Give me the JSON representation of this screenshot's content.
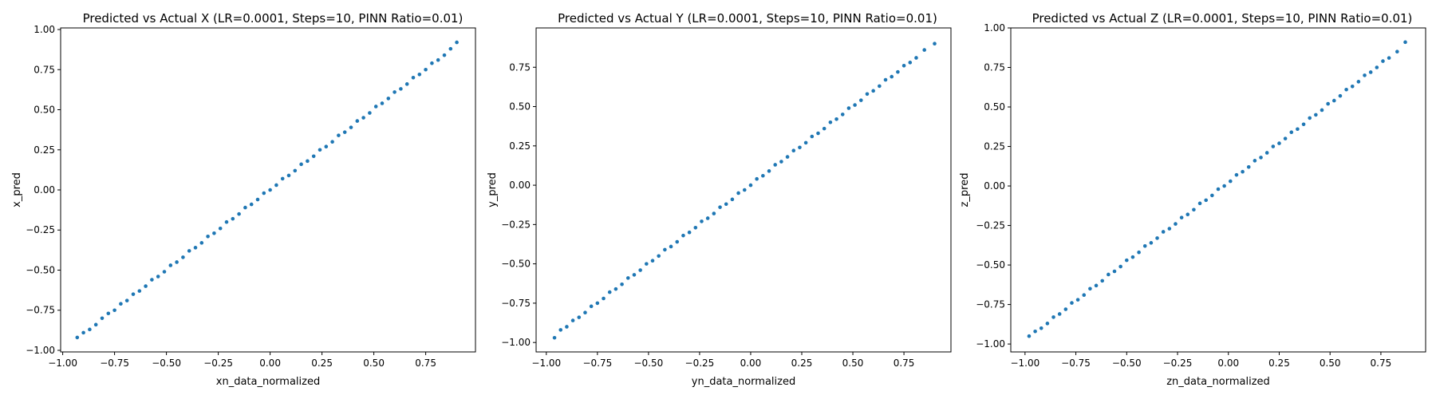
{
  "chart_data": [
    {
      "type": "scatter",
      "title": "Predicted vs Actual X (LR=0.0001, Steps=10, PINN Ratio=0.01)",
      "xlabel": "xn_data_normalized",
      "ylabel": "x_pred",
      "xlim": [
        -1.01,
        0.99
      ],
      "ylim": [
        -1.01,
        1.01
      ],
      "xticks": [
        -1.0,
        -0.75,
        -0.5,
        -0.25,
        0.0,
        0.25,
        0.5,
        0.75
      ],
      "xtick_labels": [
        "−1.00",
        "−0.75",
        "−0.50",
        "−0.25",
        "0.00",
        "0.25",
        "0.50",
        "0.75"
      ],
      "yticks": [
        -1.0,
        -0.75,
        -0.5,
        -0.25,
        0.0,
        0.25,
        0.5,
        0.75,
        1.0
      ],
      "ytick_labels": [
        "−1.00",
        "−0.75",
        "−0.50",
        "−0.25",
        "0.00",
        "0.25",
        "0.50",
        "0.75",
        "1.00"
      ],
      "grid": false,
      "color": "#1f77b4",
      "x": [
        -0.93,
        -0.9,
        -0.87,
        -0.84,
        -0.81,
        -0.78,
        -0.75,
        -0.72,
        -0.69,
        -0.66,
        -0.63,
        -0.6,
        -0.57,
        -0.54,
        -0.51,
        -0.48,
        -0.45,
        -0.42,
        -0.39,
        -0.36,
        -0.33,
        -0.3,
        -0.27,
        -0.24,
        -0.21,
        -0.18,
        -0.15,
        -0.12,
        -0.09,
        -0.06,
        -0.03,
        0.0,
        0.03,
        0.06,
        0.09,
        0.12,
        0.15,
        0.18,
        0.21,
        0.24,
        0.27,
        0.3,
        0.33,
        0.36,
        0.39,
        0.42,
        0.45,
        0.48,
        0.51,
        0.54,
        0.57,
        0.6,
        0.63,
        0.66,
        0.69,
        0.72,
        0.75,
        0.78,
        0.81,
        0.84,
        0.87,
        0.9
      ],
      "y": [
        -0.92,
        -0.89,
        -0.87,
        -0.84,
        -0.8,
        -0.77,
        -0.75,
        -0.71,
        -0.69,
        -0.65,
        -0.63,
        -0.6,
        -0.56,
        -0.54,
        -0.51,
        -0.47,
        -0.45,
        -0.42,
        -0.38,
        -0.36,
        -0.33,
        -0.29,
        -0.27,
        -0.24,
        -0.2,
        -0.18,
        -0.15,
        -0.11,
        -0.09,
        -0.06,
        -0.02,
        0.0,
        0.03,
        0.07,
        0.09,
        0.12,
        0.16,
        0.18,
        0.21,
        0.25,
        0.27,
        0.3,
        0.34,
        0.36,
        0.39,
        0.43,
        0.45,
        0.48,
        0.52,
        0.54,
        0.57,
        0.61,
        0.63,
        0.66,
        0.7,
        0.72,
        0.75,
        0.79,
        0.81,
        0.84,
        0.88,
        0.92
      ]
    },
    {
      "type": "scatter",
      "title": "Predicted vs Actual Y (LR=0.0001, Steps=10, PINN Ratio=0.01)",
      "xlabel": "yn_data_normalized",
      "ylabel": "y_pred",
      "xlim": [
        -1.05,
        0.98
      ],
      "ylim": [
        -1.06,
        1.0
      ],
      "xticks": [
        -1.0,
        -0.75,
        -0.5,
        -0.25,
        0.0,
        0.25,
        0.5,
        0.75
      ],
      "xtick_labels": [
        "−1.00",
        "−0.75",
        "−0.50",
        "−0.25",
        "0.00",
        "0.25",
        "0.50",
        "0.75"
      ],
      "yticks": [
        -1.0,
        -0.75,
        -0.5,
        -0.25,
        0.0,
        0.25,
        0.5,
        0.75
      ],
      "ytick_labels": [
        "−1.00",
        "−0.75",
        "−0.50",
        "−0.25",
        "0.00",
        "0.25",
        "0.50",
        "0.75"
      ],
      "grid": false,
      "color": "#1f77b4",
      "x": [
        -0.96,
        -0.93,
        -0.9,
        -0.87,
        -0.84,
        -0.81,
        -0.78,
        -0.75,
        -0.72,
        -0.69,
        -0.66,
        -0.63,
        -0.6,
        -0.57,
        -0.54,
        -0.51,
        -0.48,
        -0.45,
        -0.42,
        -0.39,
        -0.36,
        -0.33,
        -0.3,
        -0.27,
        -0.24,
        -0.21,
        -0.18,
        -0.15,
        -0.12,
        -0.09,
        -0.06,
        -0.03,
        0.0,
        0.03,
        0.06,
        0.09,
        0.12,
        0.15,
        0.18,
        0.21,
        0.24,
        0.27,
        0.3,
        0.33,
        0.36,
        0.39,
        0.42,
        0.45,
        0.48,
        0.51,
        0.54,
        0.57,
        0.6,
        0.63,
        0.66,
        0.69,
        0.72,
        0.75,
        0.78,
        0.81,
        0.85,
        0.9
      ],
      "y": [
        -0.97,
        -0.92,
        -0.9,
        -0.86,
        -0.84,
        -0.81,
        -0.77,
        -0.75,
        -0.72,
        -0.68,
        -0.66,
        -0.63,
        -0.59,
        -0.57,
        -0.54,
        -0.5,
        -0.48,
        -0.45,
        -0.41,
        -0.39,
        -0.36,
        -0.32,
        -0.3,
        -0.27,
        -0.23,
        -0.21,
        -0.18,
        -0.14,
        -0.12,
        -0.09,
        -0.05,
        -0.03,
        0.0,
        0.04,
        0.06,
        0.09,
        0.13,
        0.15,
        0.18,
        0.22,
        0.24,
        0.27,
        0.31,
        0.33,
        0.36,
        0.4,
        0.42,
        0.45,
        0.49,
        0.51,
        0.54,
        0.58,
        0.6,
        0.63,
        0.67,
        0.69,
        0.72,
        0.76,
        0.78,
        0.81,
        0.86,
        0.9
      ]
    },
    {
      "type": "scatter",
      "title": "Predicted vs Actual Z (LR=0.0001, Steps=10, PINN Ratio=0.01)",
      "xlabel": "zn_data_normalized",
      "ylabel": "z_pred",
      "xlim": [
        -1.07,
        0.97
      ],
      "ylim": [
        -1.05,
        1.0
      ],
      "xticks": [
        -1.0,
        -0.75,
        -0.5,
        -0.25,
        0.0,
        0.25,
        0.5,
        0.75
      ],
      "xtick_labels": [
        "−1.00",
        "−0.75",
        "−0.50",
        "−0.25",
        "0.00",
        "0.25",
        "0.50",
        "0.75"
      ],
      "yticks": [
        -1.0,
        -0.75,
        -0.5,
        -0.25,
        0.0,
        0.25,
        0.5,
        0.75,
        1.0
      ],
      "ytick_labels": [
        "−1.00",
        "−0.75",
        "−0.50",
        "−0.25",
        "0.00",
        "0.25",
        "0.50",
        "0.75",
        "1.00"
      ],
      "grid": false,
      "color": "#1f77b4",
      "x": [
        -0.98,
        -0.95,
        -0.92,
        -0.89,
        -0.86,
        -0.83,
        -0.8,
        -0.77,
        -0.74,
        -0.71,
        -0.68,
        -0.65,
        -0.62,
        -0.59,
        -0.56,
        -0.53,
        -0.5,
        -0.47,
        -0.44,
        -0.41,
        -0.38,
        -0.35,
        -0.32,
        -0.29,
        -0.26,
        -0.23,
        -0.2,
        -0.17,
        -0.14,
        -0.11,
        -0.08,
        -0.05,
        -0.02,
        0.01,
        0.04,
        0.07,
        0.1,
        0.13,
        0.16,
        0.19,
        0.22,
        0.25,
        0.28,
        0.31,
        0.34,
        0.37,
        0.4,
        0.43,
        0.46,
        0.49,
        0.52,
        0.55,
        0.58,
        0.61,
        0.64,
        0.67,
        0.7,
        0.73,
        0.76,
        0.79,
        0.83,
        0.87
      ],
      "y": [
        -0.95,
        -0.92,
        -0.9,
        -0.87,
        -0.83,
        -0.81,
        -0.78,
        -0.74,
        -0.72,
        -0.69,
        -0.65,
        -0.63,
        -0.6,
        -0.56,
        -0.54,
        -0.51,
        -0.47,
        -0.45,
        -0.42,
        -0.38,
        -0.36,
        -0.33,
        -0.29,
        -0.27,
        -0.24,
        -0.2,
        -0.18,
        -0.15,
        -0.11,
        -0.09,
        -0.06,
        -0.02,
        0.0,
        0.03,
        0.07,
        0.09,
        0.12,
        0.16,
        0.18,
        0.21,
        0.25,
        0.27,
        0.3,
        0.34,
        0.36,
        0.39,
        0.43,
        0.45,
        0.48,
        0.52,
        0.54,
        0.57,
        0.61,
        0.63,
        0.66,
        0.7,
        0.72,
        0.75,
        0.79,
        0.81,
        0.85,
        0.91
      ]
    }
  ]
}
